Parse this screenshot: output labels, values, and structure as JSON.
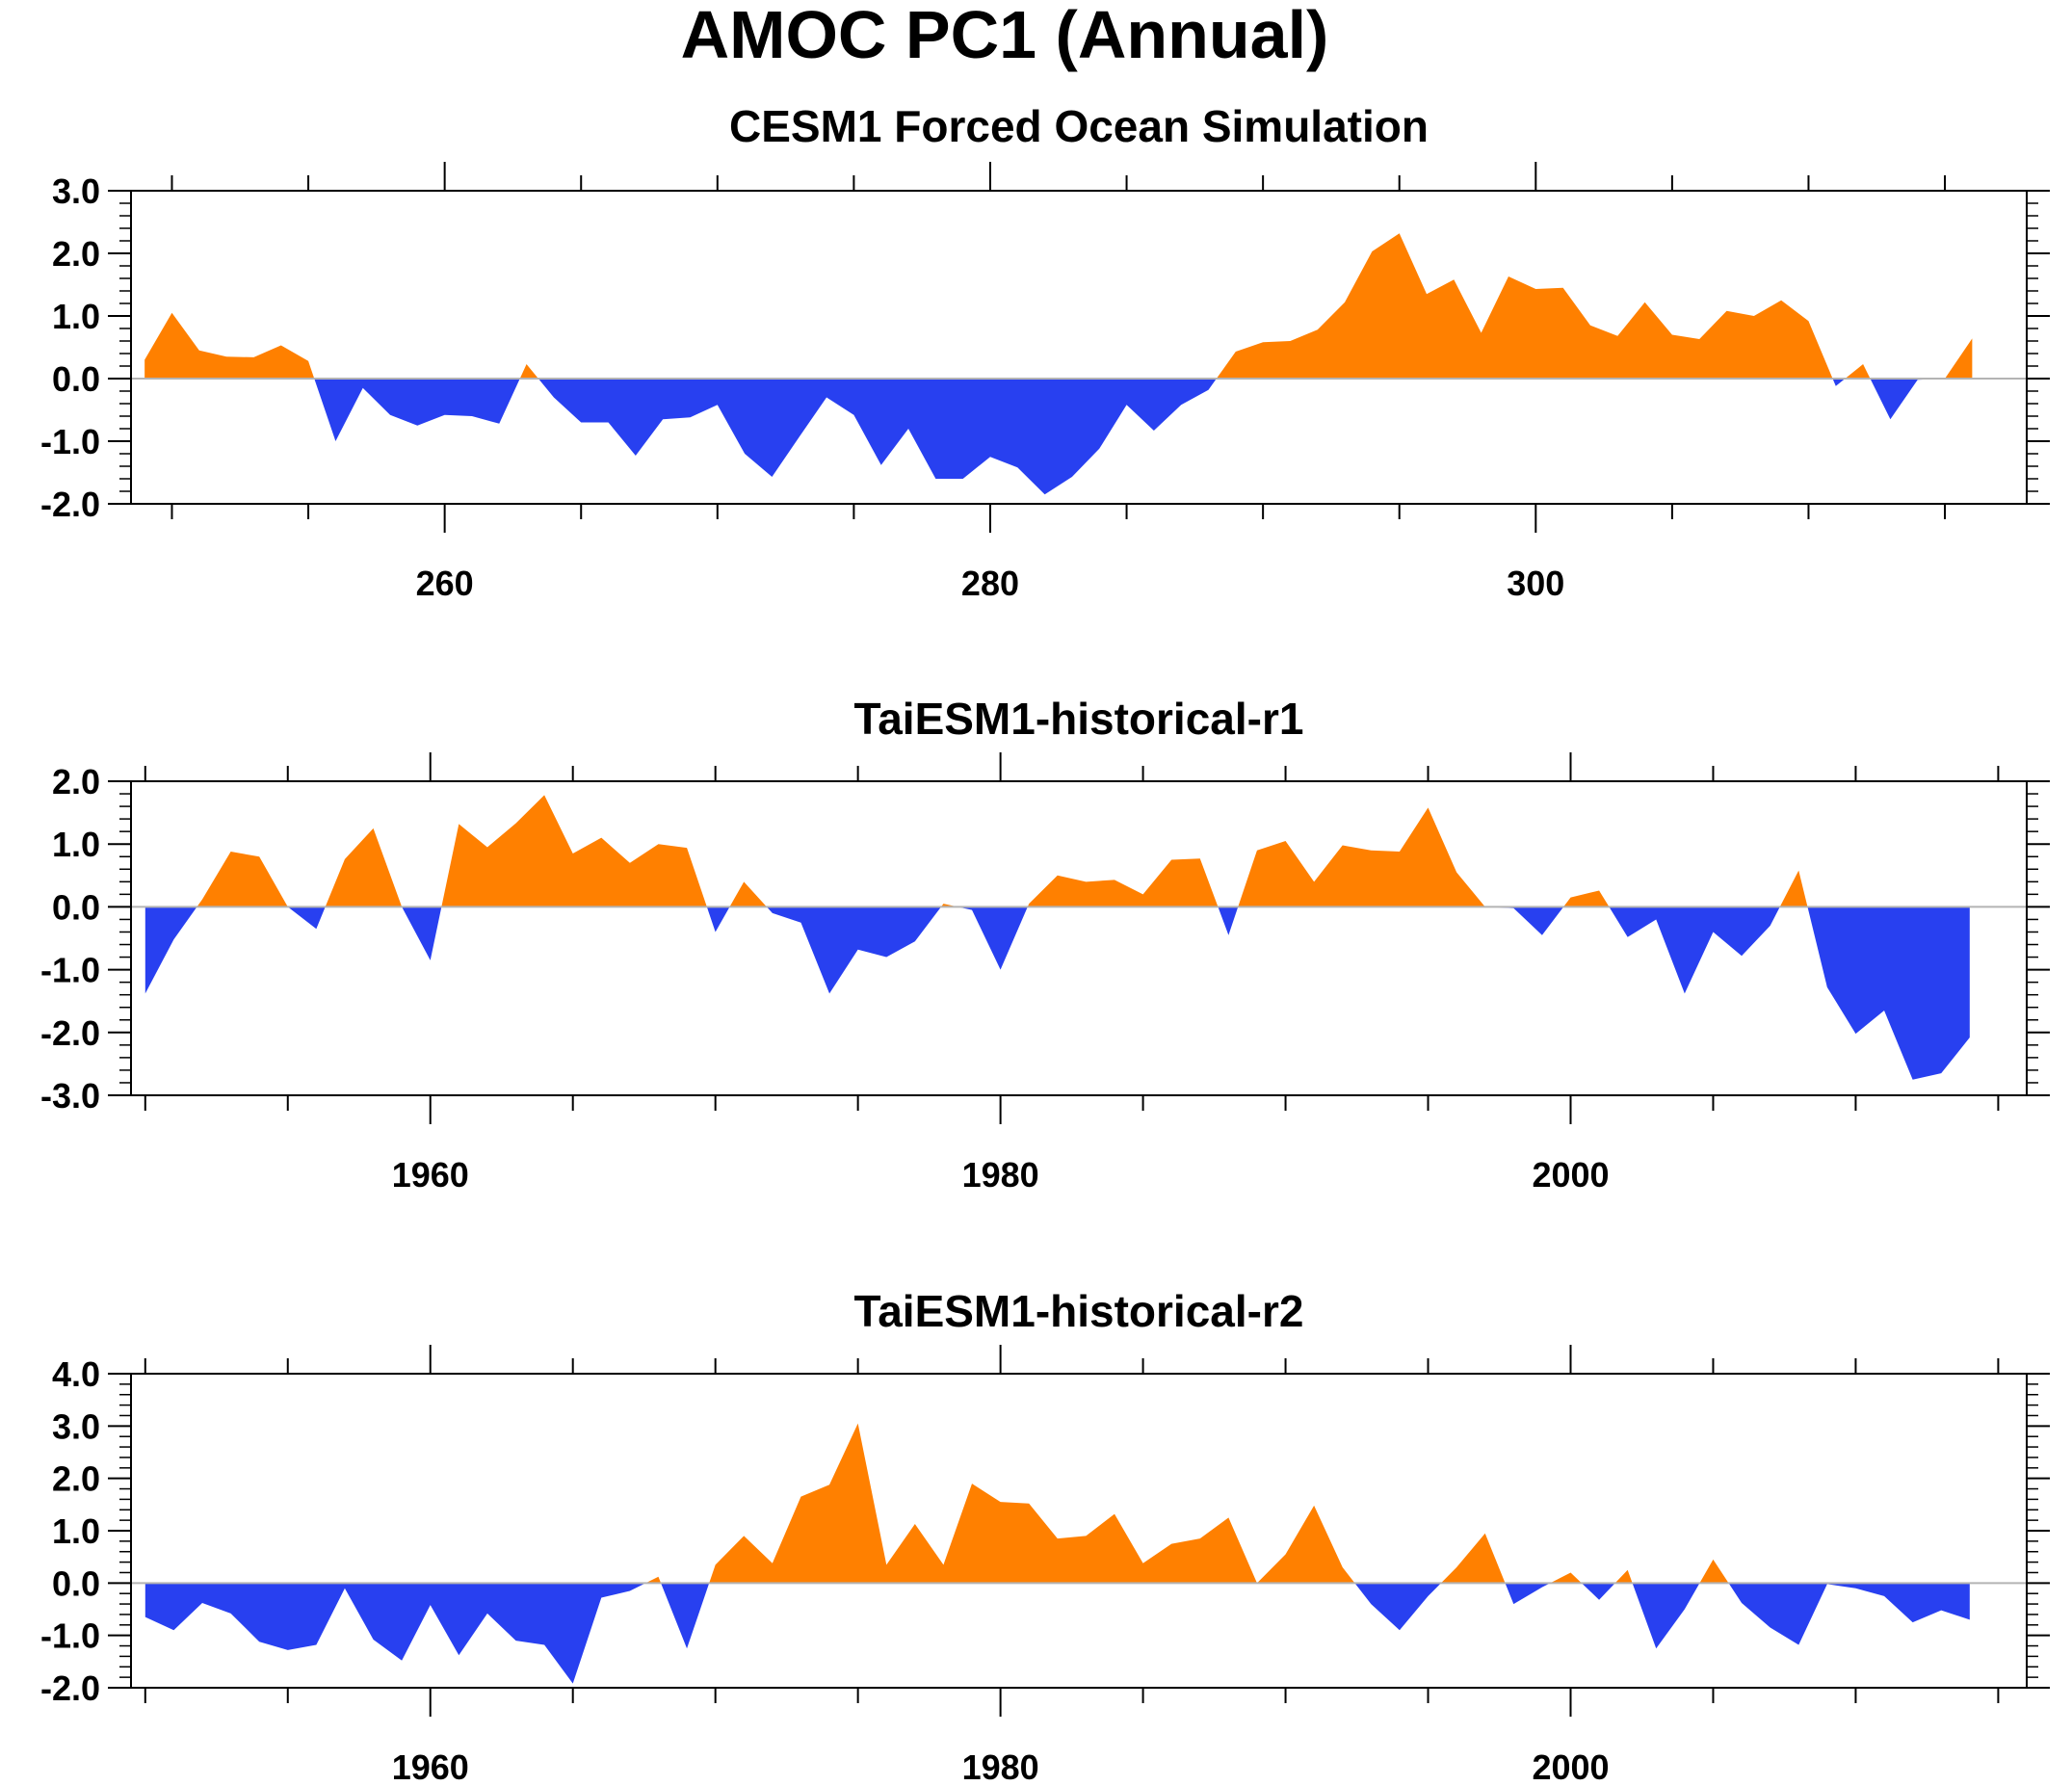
{
  "figure": {
    "title": "AMOC PC1 (Annual)"
  },
  "colors": {
    "positive": "#ff8000",
    "negative": "#2840f0",
    "axis": "#000000",
    "zero_line": "#b4b4b4"
  },
  "chart_data": [
    {
      "type": "area",
      "title": "CESM1 Forced Ocean Simulation",
      "xlabel": "",
      "ylabel": "",
      "xlim": [
        248.5,
        318
      ],
      "ylim": [
        -2.0,
        3.0
      ],
      "xticks": [
        260,
        280,
        300
      ],
      "yticks": [
        -2.0,
        -1.0,
        0.0,
        1.0,
        2.0,
        3.0
      ],
      "ytick_labels": [
        "-2.0",
        "-1.0",
        "0.0",
        "1.0",
        "2.0",
        "3.0"
      ],
      "fill_above_zero": "positive",
      "fill_below_zero": "negative",
      "x_start": 249,
      "values": [
        0.3,
        1.05,
        0.45,
        0.35,
        0.34,
        0.53,
        0.28,
        -1.0,
        -0.15,
        -0.58,
        -0.75,
        -0.58,
        -0.6,
        -0.72,
        0.23,
        -0.3,
        -0.7,
        -0.7,
        -1.23,
        -0.65,
        -0.62,
        -0.42,
        -1.2,
        -1.57,
        -0.93,
        -0.3,
        -0.58,
        -1.38,
        -0.8,
        -1.6,
        -1.6,
        -1.25,
        -1.42,
        -1.85,
        -1.57,
        -1.12,
        -0.42,
        -0.83,
        -0.42,
        -0.18,
        0.43,
        0.58,
        0.6,
        0.78,
        1.22,
        2.03,
        2.32,
        1.35,
        1.58,
        0.73,
        1.63,
        1.43,
        1.45,
        0.85,
        0.68,
        1.22,
        0.7,
        0.63,
        1.08,
        1.0,
        1.25,
        0.92,
        -0.12,
        0.23,
        -0.65,
        -0.02,
        0.0,
        0.64
      ]
    },
    {
      "type": "area",
      "title": "TaiESM1-historical-r1",
      "xlabel": "",
      "ylabel": "",
      "xlim": [
        1949.5,
        2016
      ],
      "ylim": [
        -3.0,
        2.0
      ],
      "xticks": [
        1960,
        1980,
        2000
      ],
      "yticks": [
        -3.0,
        -2.0,
        -1.0,
        0.0,
        1.0,
        2.0
      ],
      "ytick_labels": [
        "-3.0",
        "-2.0",
        "-1.0",
        "0.0",
        "1.0",
        "2.0"
      ],
      "fill_above_zero": "positive",
      "fill_below_zero": "negative",
      "x_start": 1950,
      "values": [
        -1.38,
        -0.52,
        0.12,
        0.88,
        0.8,
        0.0,
        -0.35,
        0.76,
        1.25,
        0.0,
        -0.85,
        1.32,
        0.95,
        1.33,
        1.78,
        0.85,
        1.1,
        0.7,
        1.0,
        0.94,
        -0.4,
        0.4,
        -0.1,
        -0.25,
        -1.38,
        -0.68,
        -0.8,
        -0.55,
        0.05,
        -0.05,
        -1.0,
        0.05,
        0.5,
        0.4,
        0.43,
        0.2,
        0.75,
        0.77,
        -0.45,
        0.9,
        1.05,
        0.4,
        0.98,
        0.9,
        0.88,
        1.58,
        0.55,
        0.0,
        -0.02,
        -0.45,
        0.15,
        0.26,
        -0.48,
        -0.2,
        -1.38,
        -0.4,
        -0.78,
        -0.3,
        0.58,
        -1.28,
        -2.02,
        -1.65,
        -2.75,
        -2.65,
        -2.08
      ]
    },
    {
      "type": "area",
      "title": "TaiESM1-historical-r2",
      "xlabel": "",
      "ylabel": "",
      "xlim": [
        1949.5,
        2016
      ],
      "ylim": [
        -2.0,
        4.0
      ],
      "xticks": [
        1960,
        1980,
        2000
      ],
      "yticks": [
        -2.0,
        -1.0,
        0.0,
        1.0,
        2.0,
        3.0,
        4.0
      ],
      "ytick_labels": [
        "-2.0",
        "-1.0",
        "0.0",
        "1.0",
        "2.0",
        "3.0",
        "4.0"
      ],
      "fill_above_zero": "positive",
      "fill_below_zero": "negative",
      "x_start": 1950,
      "values": [
        -0.65,
        -0.9,
        -0.38,
        -0.58,
        -1.12,
        -1.28,
        -1.18,
        -0.1,
        -1.08,
        -1.48,
        -0.42,
        -1.38,
        -0.58,
        -1.1,
        -1.18,
        -1.92,
        -0.28,
        -0.15,
        0.12,
        -1.25,
        0.35,
        0.9,
        0.38,
        1.65,
        1.88,
        3.05,
        0.35,
        1.13,
        0.35,
        1.9,
        1.55,
        1.52,
        0.85,
        0.9,
        1.32,
        0.38,
        0.75,
        0.85,
        1.25,
        0.0,
        0.55,
        1.48,
        0.3,
        -0.4,
        -0.9,
        -0.25,
        0.3,
        0.95,
        -0.4,
        -0.08,
        0.2,
        -0.32,
        0.25,
        -1.25,
        -0.5,
        0.45,
        -0.38,
        -0.85,
        -1.18,
        -0.02,
        -0.1,
        -0.25,
        -0.75,
        -0.52,
        -0.7
      ]
    }
  ]
}
